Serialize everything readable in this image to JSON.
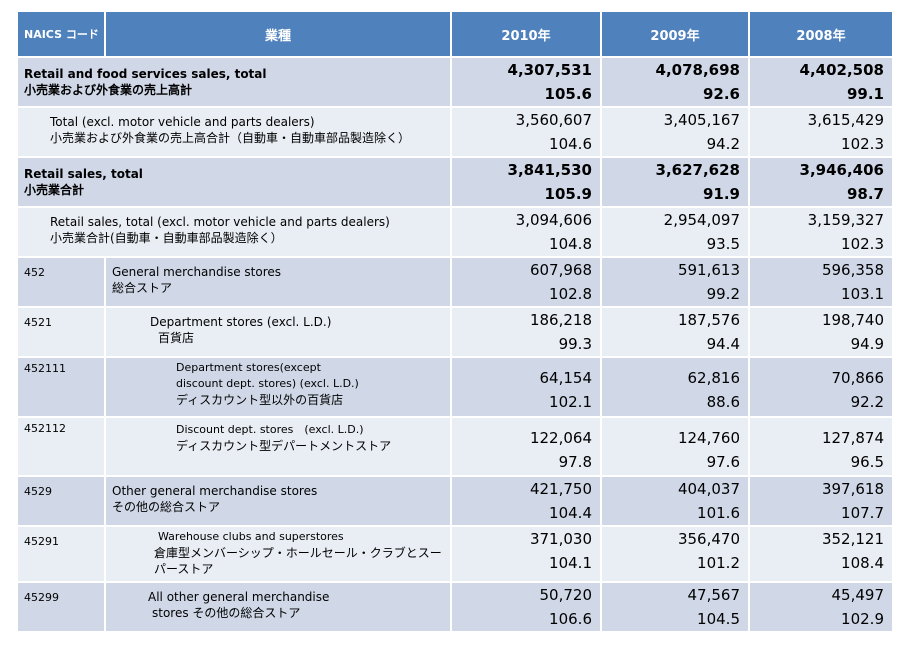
{
  "header": {
    "code": "NAICS コード",
    "industry": "業種",
    "y2010": "2010年",
    "y2009": "2009年",
    "y2008": "2008年"
  },
  "rows": [
    {
      "en": "Retail and food services sales, total",
      "ja": "小売業および外食業の売上高計",
      "v2010": "4,307,531",
      "p2010": "105.6",
      "v2009": "4,078,698",
      "p2009": "92.6",
      "v2008": "4,402,508",
      "p2008": "99.1"
    },
    {
      "en": "Total (excl. motor vehicle and parts dealers)",
      "ja": "小売業および外食業の売上高合計（自動車・自動車部品製造除く）",
      "v2010": "3,560,607",
      "p2010": "104.6",
      "v2009": "3,405,167",
      "p2009": "94.2",
      "v2008": "3,615,429",
      "p2008": "102.3"
    },
    {
      "en": "Retail sales, total",
      "ja": "小売業合計",
      "v2010": "3,841,530",
      "p2010": "105.9",
      "v2009": "3,627,628",
      "p2009": "91.9",
      "v2008": "3,946,406",
      "p2008": "98.7"
    },
    {
      "en": "Retail sales, total (excl. motor vehicle and parts dealers)",
      "ja": "小売業合計(自動車・自動車部品製造除く）",
      "v2010": "3,094,606",
      "p2010": "104.8",
      "v2009": "2,954,097",
      "p2009": "93.5",
      "v2008": "3,159,327",
      "p2008": "102.3"
    },
    {
      "code": "452",
      "en": "General merchandise stores",
      "ja": "総合ストア",
      "v2010": "607,968",
      "p2010": "102.8",
      "v2009": "591,613",
      "p2009": "99.2",
      "v2008": "596,358",
      "p2008": "103.1"
    },
    {
      "code": "4521",
      "en": "Department stores (excl. L.D.)",
      "ja": "百貨店",
      "v2010": "186,218",
      "p2010": "99.3",
      "v2009": "187,576",
      "p2009": "94.4",
      "v2008": "198,740",
      "p2008": "94.9"
    },
    {
      "code": "452111",
      "en1": "Department stores(except",
      "en2": "discount  dept. stores) (excl. L.D.)",
      "ja": "ディスカウント型以外の百貨店",
      "v2010": "64,154",
      "p2010": "102.1",
      "v2009": "62,816",
      "p2009": "88.6",
      "v2008": "70,866",
      "p2008": "92.2"
    },
    {
      "code": "452112",
      "en": "Discount dept. stores　(excl. L.D.)",
      "ja": "ディスカウント型デパートメントストア",
      "v2010": "122,064",
      "p2010": "97.8",
      "v2009": "124,760",
      "p2009": "97.6",
      "v2008": "127,874",
      "p2008": "96.5"
    },
    {
      "code": "4529",
      "en": "Other general merchandise stores",
      "ja": "その他の総合ストア",
      "v2010": "421,750",
      "p2010": "104.4",
      "v2009": "404,037",
      "p2009": "101.6",
      "v2008": "397,618",
      "p2008": "107.7"
    },
    {
      "code": "45291",
      "en": "Warehouse clubs and superstores",
      "ja1": "倉庫型メンバーシップ・ホールセール・クラブとスー",
      "ja2": "パーストア",
      "v2010": "371,030",
      "p2010": "104.1",
      "v2009": "356,470",
      "p2009": "101.2",
      "v2008": "352,121",
      "p2008": "108.4"
    },
    {
      "code": "45299",
      "en": "All other general merchandise",
      "ja": "stores その他の総合ストア",
      "v2010": "50,720",
      "p2010": "106.6",
      "v2009": "47,567",
      "p2009": "104.5",
      "v2008": "45,497",
      "p2008": "102.9"
    }
  ]
}
